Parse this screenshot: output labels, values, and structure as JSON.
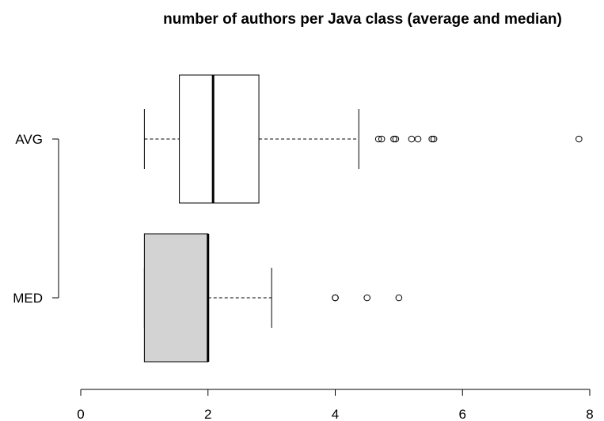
{
  "chart_data": {
    "type": "boxplot",
    "orientation": "horizontal",
    "title": "number of authors per Java class (average and median)",
    "xlabel": "",
    "ylabel": "",
    "xlim": [
      0,
      8
    ],
    "x_ticks": [
      0,
      2,
      4,
      6,
      8
    ],
    "grid": false,
    "series": [
      {
        "name": "AVG",
        "whisker_low": 1.0,
        "q1": 1.55,
        "median": 2.08,
        "q3": 2.8,
        "whisker_high": 4.37,
        "outliers": [
          4.68,
          4.73,
          4.92,
          4.95,
          5.2,
          5.3,
          5.52,
          5.55,
          7.83
        ],
        "fill": "#ffffff"
      },
      {
        "name": "MED",
        "whisker_low": 1.0,
        "q1": 1.0,
        "median": 2.0,
        "q3": 2.0,
        "whisker_high": 3.0,
        "outliers": [
          4.0,
          4.0,
          4.5,
          5.0
        ],
        "fill": "#d3d3d3"
      }
    ]
  }
}
